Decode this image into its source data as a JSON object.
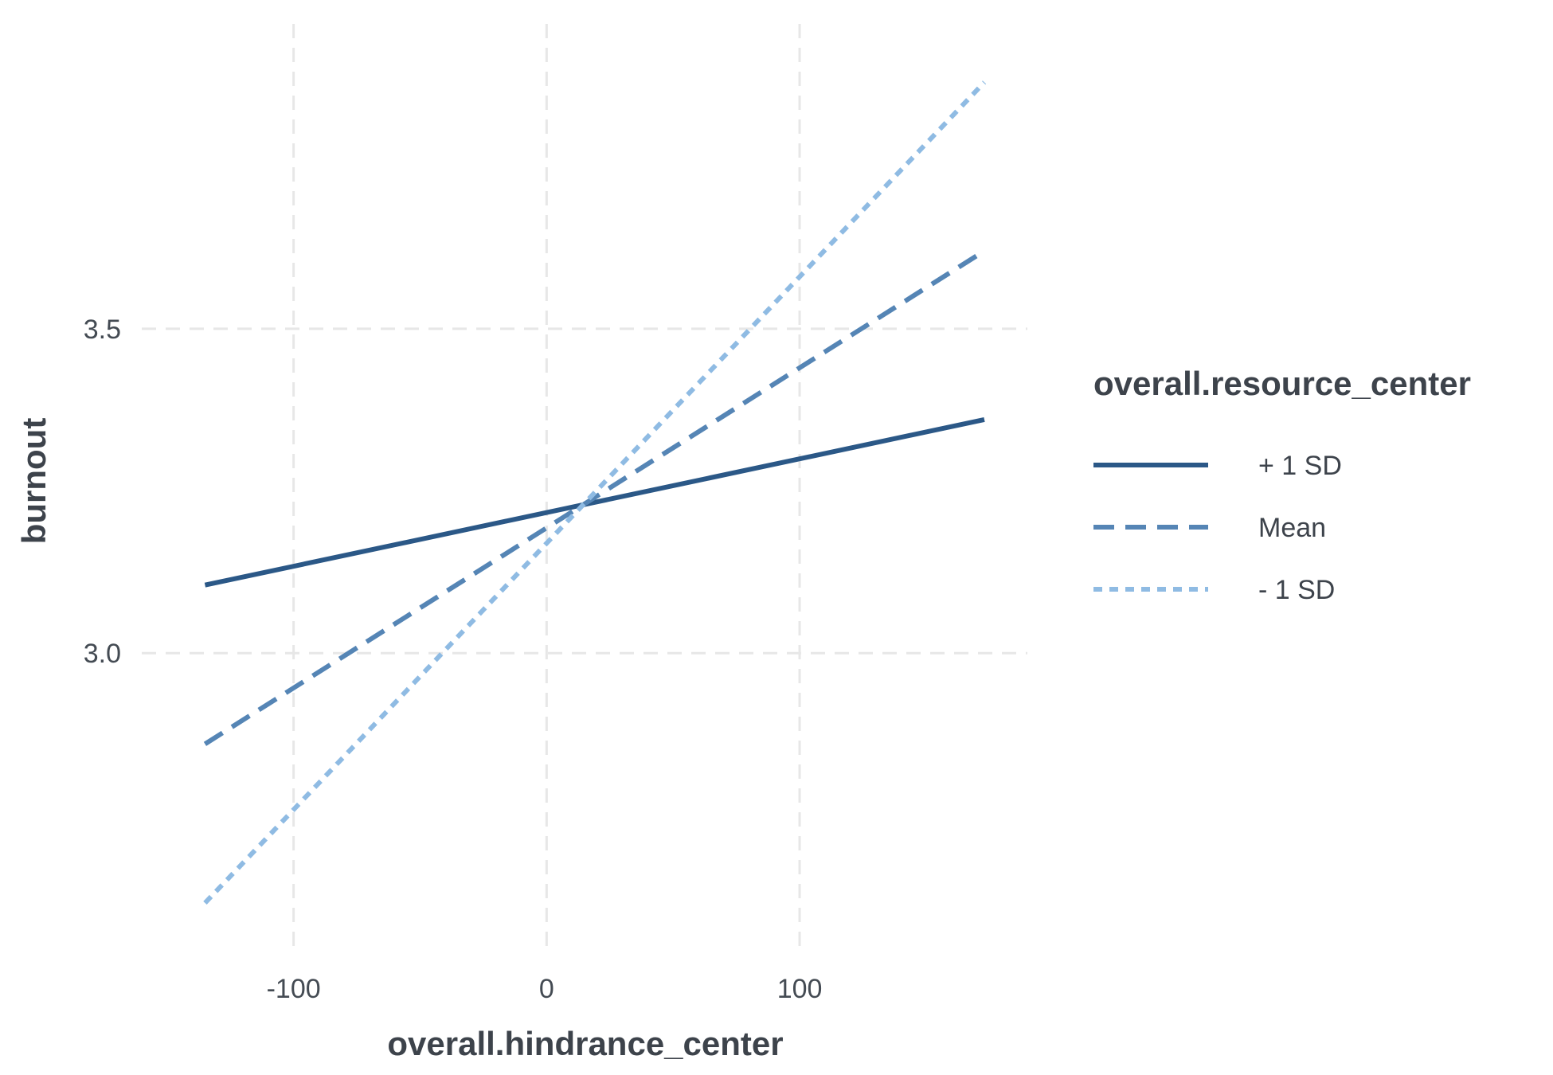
{
  "chart_data": {
    "type": "line",
    "title": "",
    "xlabel": "overall.hindrance_center",
    "ylabel": "burnout",
    "xlim": [
      -160,
      190
    ],
    "ylim": [
      2.54,
      3.97
    ],
    "x_ticks": [
      -100,
      0,
      100
    ],
    "x_tick_labels": [
      "-100",
      "0",
      "100"
    ],
    "y_ticks": [
      3.0,
      3.5
    ],
    "y_tick_labels": [
      "3.0",
      "3.5"
    ],
    "grid": true,
    "grid_style": "dashed",
    "legend": {
      "title": "overall.resource_center",
      "position": "right"
    },
    "series": [
      {
        "name": "+ 1 SD",
        "color": "#2b5887",
        "dash": "solid",
        "x": [
          -135,
          173
        ],
        "y": [
          3.105,
          3.36
        ]
      },
      {
        "name": "Mean",
        "color": "#5585b5",
        "dash": "dashed",
        "x": [
          -135,
          173
        ],
        "y": [
          2.86,
          3.62
        ]
      },
      {
        "name": "- 1 SD",
        "color": "#8fbbe3",
        "dash": "dotted",
        "x": [
          -135,
          173
        ],
        "y": [
          2.615,
          3.88
        ]
      }
    ]
  }
}
